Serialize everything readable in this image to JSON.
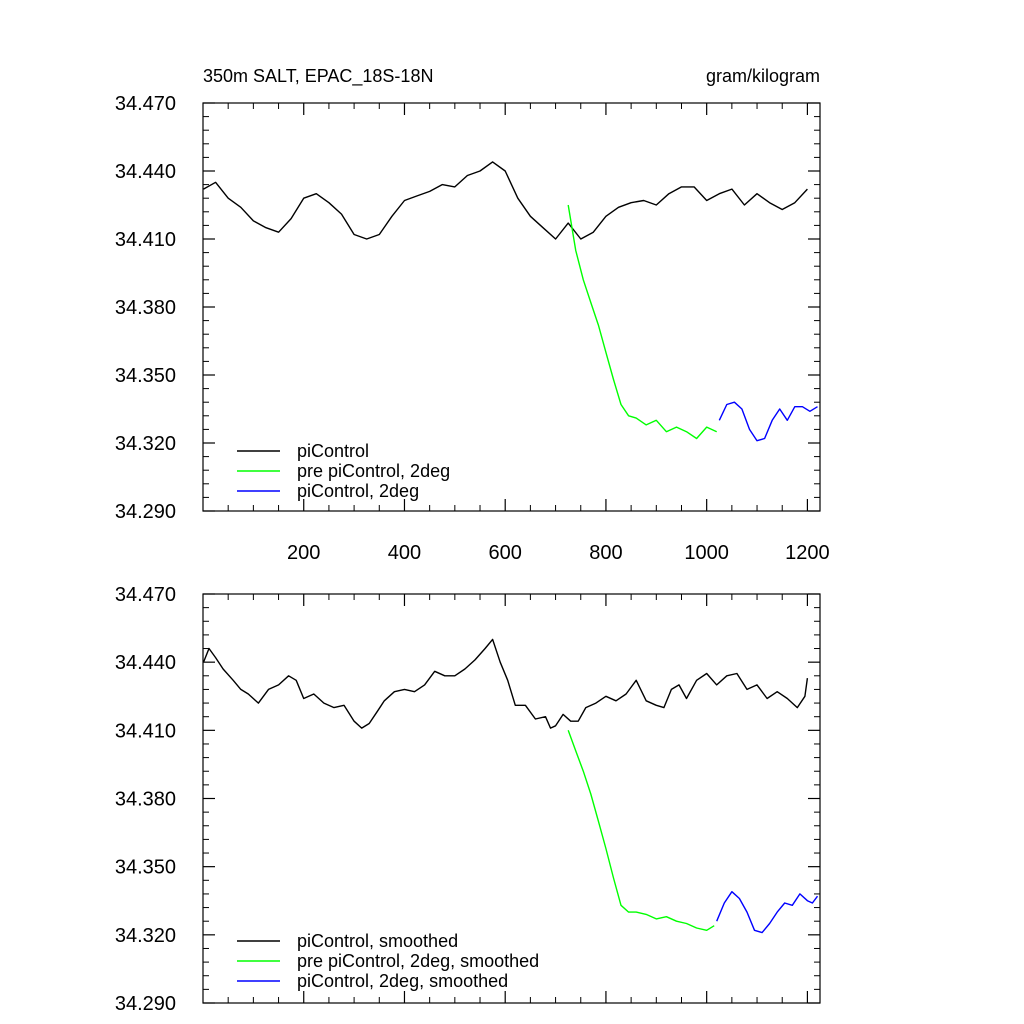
{
  "figure": {
    "title_left": "350m SALT, EPAC_18S-18N",
    "title_right": "gram/kilogram"
  },
  "chart_data": [
    {
      "type": "line",
      "title": "350m SALT, EPAC_18S-18N",
      "units": "gram/kilogram",
      "xlim": [
        0,
        1225
      ],
      "ylim": [
        34.29,
        34.47
      ],
      "x_ticks": [
        200,
        400,
        600,
        800,
        1000,
        1200
      ],
      "x_tick_labels": [
        "200",
        "400",
        "600",
        "800",
        "1000",
        "1200"
      ],
      "y_ticks": [
        34.29,
        34.32,
        34.35,
        34.38,
        34.41,
        34.44,
        34.47
      ],
      "y_tick_labels": [
        "34.290",
        "34.320",
        "34.350",
        "34.380",
        "34.410",
        "34.440",
        "34.470"
      ],
      "legend_position": "bottom-left",
      "series": [
        {
          "name": "piControl",
          "color": "#000000",
          "x": [
            1,
            25,
            50,
            75,
            100,
            125,
            150,
            175,
            200,
            225,
            250,
            275,
            300,
            325,
            350,
            375,
            400,
            425,
            450,
            475,
            500,
            525,
            550,
            575,
            600,
            625,
            650,
            675,
            700,
            725,
            750,
            775,
            800,
            825,
            850,
            875,
            900,
            925,
            950,
            975,
            1000,
            1025,
            1050,
            1075,
            1100,
            1125,
            1150,
            1175,
            1200
          ],
          "y": [
            34.432,
            34.435,
            34.428,
            34.424,
            34.418,
            34.415,
            34.413,
            34.419,
            34.428,
            34.43,
            34.426,
            34.421,
            34.412,
            34.41,
            34.412,
            34.42,
            34.427,
            34.429,
            34.431,
            34.434,
            34.433,
            34.438,
            34.44,
            34.444,
            34.44,
            34.428,
            34.42,
            34.415,
            34.41,
            34.417,
            34.41,
            34.413,
            34.42,
            34.424,
            34.426,
            34.427,
            34.425,
            34.43,
            34.433,
            34.433,
            34.427,
            34.43,
            34.432,
            34.425,
            34.43,
            34.426,
            34.423,
            34.426,
            34.432
          ]
        },
        {
          "name": "pre piControl, 2deg",
          "color": "#00ff00",
          "x": [
            725,
            740,
            755,
            770,
            785,
            800,
            815,
            830,
            845,
            860,
            880,
            900,
            920,
            940,
            960,
            980,
            1000,
            1020
          ],
          "y": [
            34.425,
            34.405,
            34.392,
            34.382,
            34.372,
            34.36,
            34.348,
            34.337,
            34.332,
            34.331,
            34.328,
            34.33,
            34.325,
            34.327,
            34.325,
            34.322,
            34.327,
            34.325
          ]
        },
        {
          "name": "piControl, 2deg",
          "color": "#0000ff",
          "x": [
            1025,
            1040,
            1055,
            1070,
            1085,
            1100,
            1115,
            1130,
            1145,
            1160,
            1175,
            1190,
            1205,
            1220
          ],
          "y": [
            34.33,
            34.337,
            34.338,
            34.335,
            34.326,
            34.321,
            34.322,
            34.33,
            34.335,
            34.33,
            34.336,
            34.336,
            34.334,
            34.336
          ]
        }
      ]
    },
    {
      "type": "line",
      "xlim": [
        0,
        1225
      ],
      "ylim": [
        34.29,
        34.47
      ],
      "x_ticks": [
        200,
        400,
        600,
        800,
        1000,
        1200
      ],
      "y_ticks": [
        34.29,
        34.32,
        34.35,
        34.38,
        34.41,
        34.44,
        34.47
      ],
      "y_tick_labels": [
        "34.290",
        "34.320",
        "34.350",
        "34.380",
        "34.410",
        "34.440",
        "34.470"
      ],
      "legend_position": "bottom-left",
      "series": [
        {
          "name": "piControl, smoothed",
          "color": "#000000",
          "x": [
            1,
            12,
            25,
            40,
            60,
            75,
            90,
            110,
            130,
            150,
            170,
            185,
            200,
            220,
            240,
            260,
            280,
            300,
            315,
            330,
            345,
            360,
            380,
            400,
            420,
            440,
            460,
            480,
            500,
            520,
            540,
            560,
            575,
            590,
            605,
            620,
            640,
            660,
            680,
            690,
            700,
            715,
            730,
            745,
            760,
            780,
            800,
            820,
            840,
            860,
            880,
            900,
            915,
            930,
            945,
            960,
            980,
            1000,
            1020,
            1040,
            1060,
            1080,
            1100,
            1120,
            1140,
            1160,
            1180,
            1195,
            1200
          ],
          "y": [
            34.44,
            34.446,
            34.442,
            34.437,
            34.432,
            34.428,
            34.426,
            34.422,
            34.428,
            34.43,
            34.434,
            34.432,
            34.424,
            34.426,
            34.422,
            34.42,
            34.421,
            34.414,
            34.411,
            34.413,
            34.418,
            34.423,
            34.427,
            34.428,
            34.427,
            34.43,
            34.436,
            34.434,
            34.434,
            34.437,
            34.441,
            34.446,
            34.45,
            34.44,
            34.432,
            34.421,
            34.421,
            34.415,
            34.416,
            34.411,
            34.412,
            34.417,
            34.414,
            34.414,
            34.42,
            34.422,
            34.425,
            34.423,
            34.426,
            34.432,
            34.423,
            34.421,
            34.42,
            34.428,
            34.43,
            34.424,
            34.432,
            34.435,
            34.43,
            34.434,
            34.435,
            34.428,
            34.43,
            34.424,
            34.427,
            34.424,
            34.42,
            34.425,
            34.433
          ]
        },
        {
          "name": "pre piControl, 2deg, smoothed",
          "color": "#00ff00",
          "x": [
            725,
            740,
            755,
            770,
            785,
            800,
            815,
            830,
            845,
            860,
            880,
            900,
            920,
            940,
            960,
            980,
            1000,
            1015
          ],
          "y": [
            34.41,
            34.401,
            34.392,
            34.382,
            34.37,
            34.358,
            34.345,
            34.333,
            34.33,
            34.33,
            34.329,
            34.327,
            34.328,
            34.326,
            34.325,
            34.323,
            34.322,
            34.324
          ]
        },
        {
          "name": "piControl, 2deg, smoothed",
          "color": "#0000ff",
          "x": [
            1020,
            1035,
            1050,
            1065,
            1080,
            1095,
            1110,
            1125,
            1140,
            1155,
            1170,
            1185,
            1200,
            1210,
            1220
          ],
          "y": [
            34.326,
            34.334,
            34.339,
            34.336,
            34.33,
            34.322,
            34.321,
            34.325,
            34.33,
            34.334,
            34.333,
            34.338,
            34.335,
            34.334,
            34.337
          ]
        }
      ]
    }
  ]
}
